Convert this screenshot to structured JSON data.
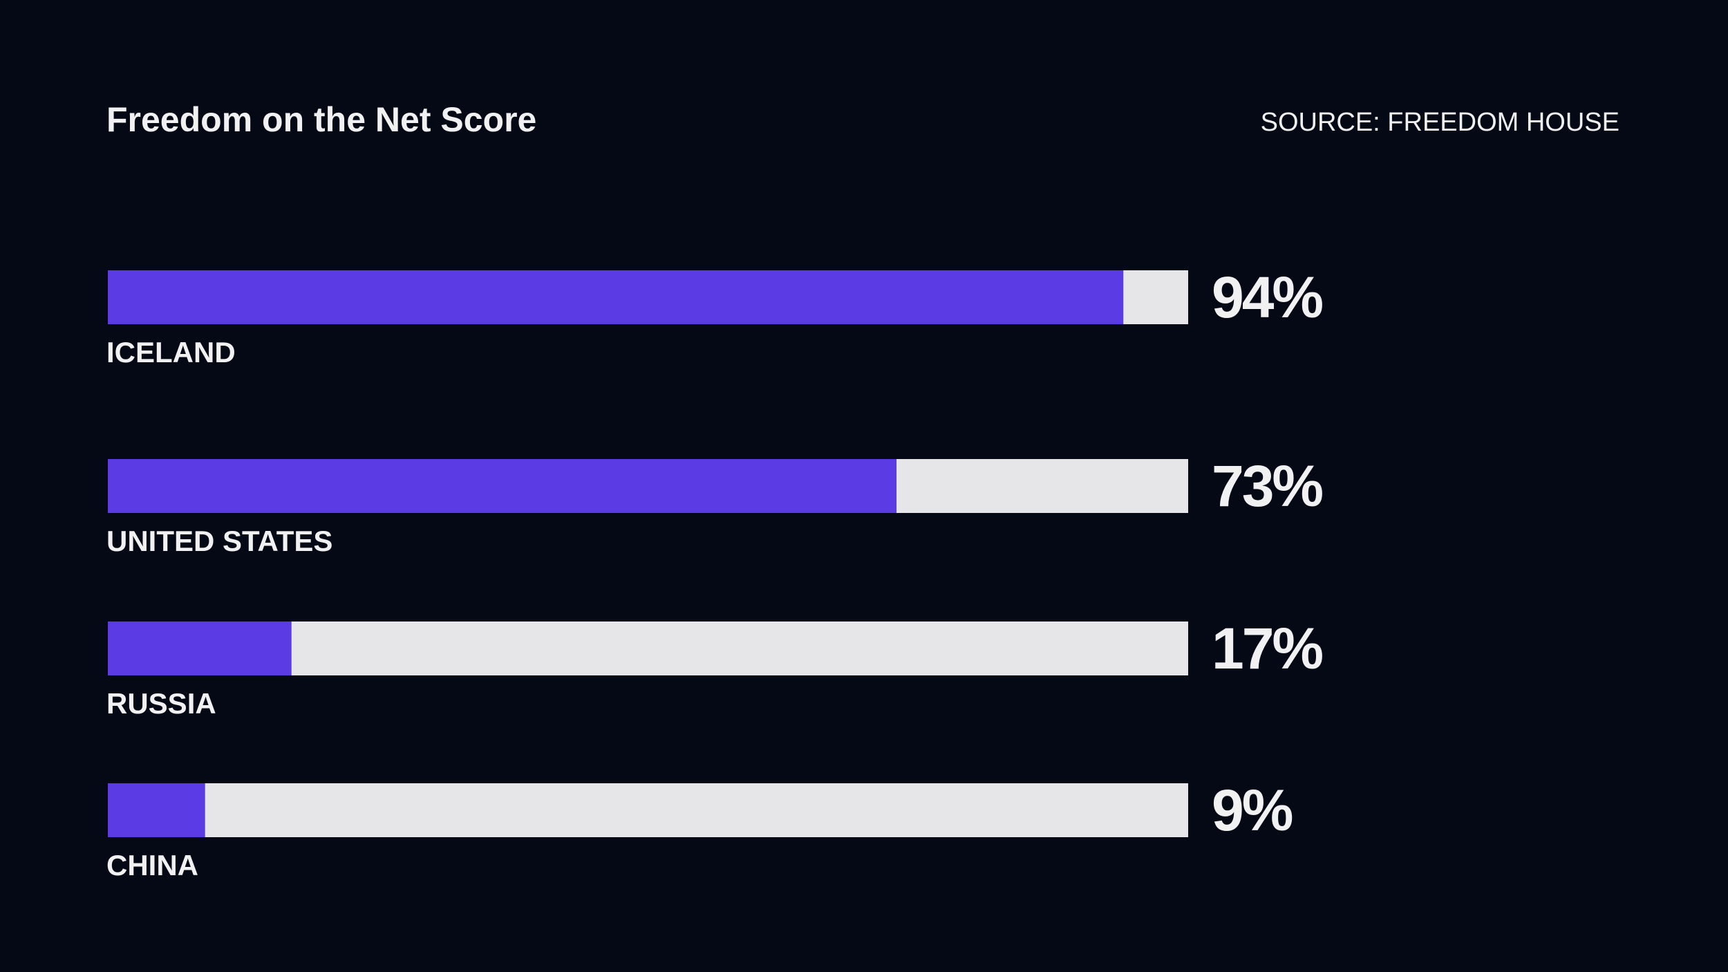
{
  "chart_data": {
    "type": "bar",
    "orientation": "horizontal",
    "title": "Freedom on the Net Score",
    "source": "SOURCE: FREEDOM HOUSE",
    "categories": [
      "ICELAND",
      "UNITED STATES",
      "RUSSIA",
      "CHINA"
    ],
    "values": [
      94,
      73,
      17,
      9
    ],
    "value_labels": [
      "94%",
      "73%",
      "17%",
      "9%"
    ],
    "xlim": [
      0,
      100
    ],
    "grid": false,
    "legend": "none"
  },
  "colors": {
    "background": "#050915",
    "bar_fill": "#5b3be4",
    "bar_track": "#e6e6e8",
    "text": "#f1f1f1"
  }
}
